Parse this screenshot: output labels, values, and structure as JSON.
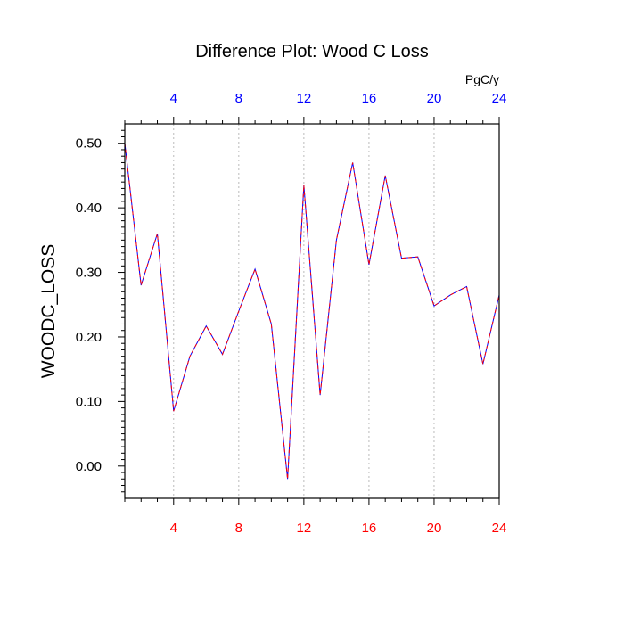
{
  "chart_data": {
    "type": "line",
    "title": "Difference Plot: Wood C Loss",
    "units": "PgC/y",
    "ylabel": "WOODC_LOSS",
    "xlabel": "",
    "xlim": [
      1,
      24
    ],
    "ylim": [
      -0.05,
      0.53
    ],
    "x_ticks": [
      4,
      8,
      12,
      16,
      20,
      24
    ],
    "x_tick_labels": [
      "4",
      "8",
      "12",
      "16",
      "20",
      "24"
    ],
    "y_ticks": [
      0.0,
      0.1,
      0.2,
      0.3,
      0.4,
      0.5
    ],
    "y_tick_labels": [
      "0.00",
      "0.10",
      "0.20",
      "0.30",
      "0.40",
      "0.50"
    ],
    "grid": "vertical dotted at major x ticks",
    "bottom_tick_color": "#ff0000",
    "top_tick_color": "#0000ff",
    "series": [
      {
        "color": "#0000ff",
        "dash": "solid",
        "x": [
          1,
          2,
          3,
          4,
          5,
          6,
          7,
          8,
          9,
          10,
          11,
          12,
          13,
          14,
          15,
          16,
          17,
          18,
          19,
          20,
          21,
          22,
          23,
          24
        ],
        "values": [
          0.5,
          0.28,
          0.36,
          0.085,
          0.17,
          0.217,
          0.173,
          0.24,
          0.305,
          0.22,
          -0.02,
          0.435,
          0.11,
          0.35,
          0.47,
          0.312,
          0.45,
          0.322,
          0.324,
          0.248,
          0.265,
          0.278,
          0.158,
          0.265
        ]
      },
      {
        "color": "#ff0000",
        "dash": "dashed",
        "x": [
          1,
          2,
          3,
          4,
          5,
          6,
          7,
          8,
          9,
          10,
          11,
          12,
          13,
          14,
          15,
          16,
          17,
          18,
          19,
          20,
          21,
          22,
          23,
          24
        ],
        "values": [
          0.5,
          0.28,
          0.36,
          0.085,
          0.17,
          0.217,
          0.173,
          0.24,
          0.305,
          0.22,
          -0.02,
          0.435,
          0.11,
          0.35,
          0.47,
          0.312,
          0.45,
          0.322,
          0.324,
          0.248,
          0.265,
          0.278,
          0.158,
          0.265
        ]
      }
    ]
  }
}
